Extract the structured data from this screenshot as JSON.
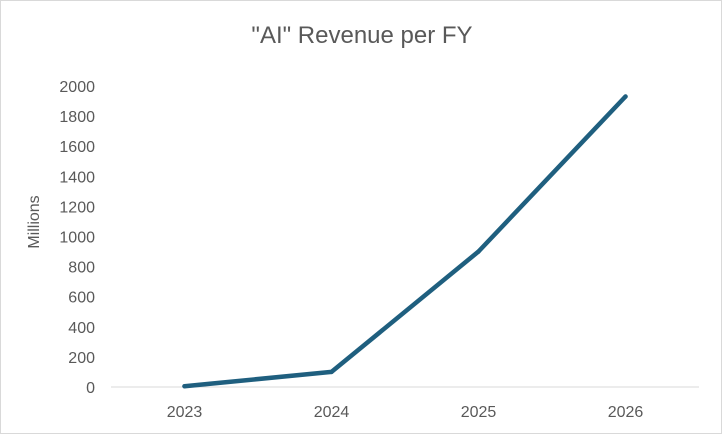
{
  "chart_data": {
    "type": "line",
    "title": "\"AI\" Revenue per FY",
    "xlabel": "",
    "ylabel": "Millions",
    "categories": [
      "2023",
      "2024",
      "2025",
      "2026"
    ],
    "series": [
      {
        "values": [
          5,
          100,
          900,
          1930
        ],
        "color": "#1f5f7f"
      }
    ],
    "ylim": [
      0,
      2000
    ],
    "y_ticks": [
      0,
      200,
      400,
      600,
      800,
      1000,
      1200,
      1400,
      1600,
      1800,
      2000
    ],
    "grid": false,
    "legend": "none"
  }
}
